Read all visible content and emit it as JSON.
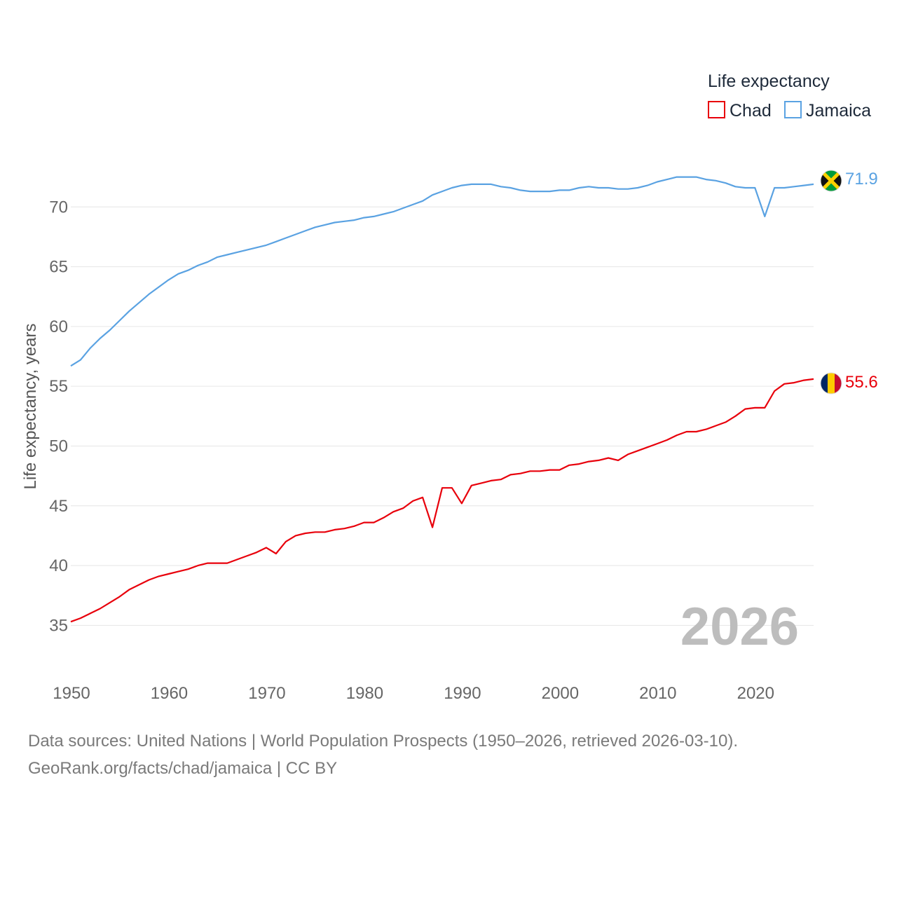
{
  "chart_data": {
    "type": "line",
    "title": "",
    "ylabel": "Life expectancy, years",
    "xlabel": "",
    "xlim": [
      1950,
      2026
    ],
    "ylim": [
      32.5,
      75
    ],
    "x_ticks": [
      "1950",
      "1960",
      "1970",
      "1980",
      "1990",
      "2000",
      "2010",
      "2020"
    ],
    "y_ticks": [
      "35",
      "40",
      "45",
      "50",
      "55",
      "60",
      "65",
      "70"
    ],
    "legend_title": "Life expectancy",
    "year_stamp": "2026",
    "x": [
      1950,
      1951,
      1952,
      1953,
      1954,
      1955,
      1956,
      1957,
      1958,
      1959,
      1960,
      1961,
      1962,
      1963,
      1964,
      1965,
      1966,
      1967,
      1968,
      1969,
      1970,
      1971,
      1972,
      1973,
      1974,
      1975,
      1976,
      1977,
      1978,
      1979,
      1980,
      1981,
      1982,
      1983,
      1984,
      1985,
      1986,
      1987,
      1988,
      1989,
      1990,
      1991,
      1992,
      1993,
      1994,
      1995,
      1996,
      1997,
      1998,
      1999,
      2000,
      2001,
      2002,
      2003,
      2004,
      2005,
      2006,
      2007,
      2008,
      2009,
      2010,
      2011,
      2012,
      2013,
      2014,
      2015,
      2016,
      2017,
      2018,
      2019,
      2020,
      2021,
      2022,
      2023,
      2024,
      2025,
      2026
    ],
    "series": [
      {
        "name": "Chad",
        "color": "#e8000b",
        "end_label": "55.6",
        "values": [
          35.3,
          35.6,
          36.0,
          36.4,
          36.9,
          37.4,
          38.0,
          38.4,
          38.8,
          39.1,
          39.3,
          39.5,
          39.7,
          40.0,
          40.2,
          40.2,
          40.2,
          40.5,
          40.8,
          41.1,
          41.5,
          41.0,
          42.0,
          42.5,
          42.7,
          42.8,
          42.8,
          43.0,
          43.1,
          43.3,
          43.6,
          43.6,
          44.0,
          44.5,
          44.8,
          45.4,
          45.7,
          43.2,
          46.5,
          46.5,
          45.2,
          46.7,
          46.9,
          47.1,
          47.2,
          47.6,
          47.7,
          47.9,
          47.9,
          48.0,
          48.0,
          48.4,
          48.5,
          48.7,
          48.8,
          49.0,
          48.8,
          49.3,
          49.6,
          49.9,
          50.2,
          50.5,
          50.9,
          51.2,
          51.2,
          51.4,
          51.7,
          52.0,
          52.5,
          53.1,
          53.2,
          53.2,
          54.6,
          55.2,
          55.3,
          55.5,
          55.6
        ]
      },
      {
        "name": "Jamaica",
        "color": "#5aa2e2",
        "end_label": "71.9",
        "values": [
          56.7,
          57.2,
          58.2,
          59.0,
          59.7,
          60.5,
          61.3,
          62.0,
          62.7,
          63.3,
          63.9,
          64.4,
          64.7,
          65.1,
          65.4,
          65.8,
          66.0,
          66.2,
          66.4,
          66.6,
          66.8,
          67.1,
          67.4,
          67.7,
          68.0,
          68.3,
          68.5,
          68.7,
          68.8,
          68.9,
          69.1,
          69.2,
          69.4,
          69.6,
          69.9,
          70.2,
          70.5,
          71.0,
          71.3,
          71.6,
          71.8,
          71.9,
          71.9,
          71.9,
          71.7,
          71.6,
          71.4,
          71.3,
          71.3,
          71.3,
          71.4,
          71.4,
          71.6,
          71.7,
          71.6,
          71.6,
          71.5,
          71.5,
          71.6,
          71.8,
          72.1,
          72.3,
          72.5,
          72.5,
          72.5,
          72.3,
          72.2,
          72.0,
          71.7,
          71.6,
          71.6,
          69.2,
          71.6,
          71.6,
          71.7,
          71.8,
          71.9
        ]
      }
    ]
  },
  "source": {
    "line1": "Data sources: United Nations | World Population Prospects (1950–2026, retrieved 2026-03-10).",
    "line2": "GeoRank.org/facts/chad/jamaica | CC BY"
  }
}
